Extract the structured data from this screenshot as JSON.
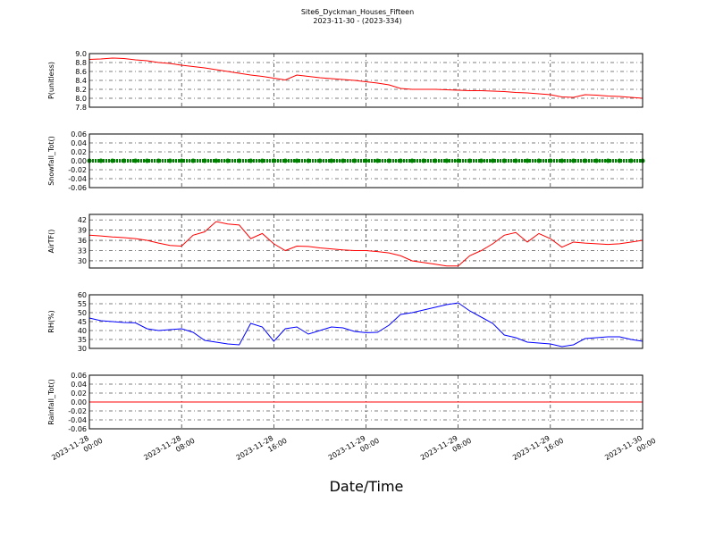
{
  "chart_data": [
    {
      "type": "line",
      "title": "Site6_Dyckman_Houses_Fifteen",
      "subtitle": "2023-11-30 - (2023-334)",
      "ylabel": "P(unitless)",
      "color": "#ff0000",
      "xlim": [
        "2023-11-28 00:00",
        "2023-11-30 00:00"
      ],
      "ylim": [
        7.8,
        9.0
      ],
      "yticks": [
        7.8,
        {
          "value": 8.0,
          "label": "8.0"
        },
        8.2,
        8.4,
        8.6,
        8.8,
        {
          "value": 9.0,
          "label": "9.0"
        }
      ],
      "grid": true,
      "x": [
        "2023-11-28 00:00",
        "2023-11-28 01:00",
        "2023-11-28 02:00",
        "2023-11-28 03:00",
        "2023-11-28 04:00",
        "2023-11-28 05:00",
        "2023-11-28 06:00",
        "2023-11-28 07:00",
        "2023-11-28 08:00",
        "2023-11-28 09:00",
        "2023-11-28 10:00",
        "2023-11-28 11:00",
        "2023-11-28 12:00",
        "2023-11-28 13:00",
        "2023-11-28 14:00",
        "2023-11-28 15:00",
        "2023-11-28 16:00",
        "2023-11-28 17:00",
        "2023-11-28 18:00",
        "2023-11-28 19:00",
        "2023-11-28 20:00",
        "2023-11-28 21:00",
        "2023-11-28 22:00",
        "2023-11-28 23:00",
        "2023-11-29 00:00",
        "2023-11-29 01:00",
        "2023-11-29 02:00",
        "2023-11-29 03:00",
        "2023-11-29 04:00",
        "2023-11-29 05:00",
        "2023-11-29 06:00",
        "2023-11-29 07:00",
        "2023-11-29 08:00",
        "2023-11-29 09:00",
        "2023-11-29 10:00",
        "2023-11-29 11:00",
        "2023-11-29 12:00",
        "2023-11-29 13:00",
        "2023-11-29 14:00",
        "2023-11-29 15:00",
        "2023-11-29 16:00",
        "2023-11-29 17:00",
        "2023-11-29 18:00",
        "2023-11-29 19:00",
        "2023-11-29 20:00",
        "2023-11-29 21:00",
        "2023-11-29 22:00",
        "2023-11-29 23:00",
        "2023-11-30 00:00"
      ],
      "values": [
        8.87,
        8.88,
        8.9,
        8.89,
        8.86,
        8.84,
        8.8,
        8.78,
        8.74,
        8.71,
        8.68,
        8.64,
        8.6,
        8.56,
        8.52,
        8.49,
        8.45,
        8.41,
        8.52,
        8.49,
        8.46,
        8.44,
        8.42,
        8.4,
        8.37,
        8.34,
        8.3,
        8.22,
        8.2,
        8.2,
        8.2,
        8.19,
        8.18,
        8.17,
        8.17,
        8.16,
        8.15,
        8.13,
        8.12,
        8.1,
        8.08,
        8.03,
        8.02,
        8.08,
        8.07,
        8.05,
        8.04,
        8.02,
        8.0
      ]
    },
    {
      "type": "scatter",
      "ylabel": "Snowfall_Tot()",
      "color": "#008000",
      "xlim": [
        "2023-11-28 00:00",
        "2023-11-30 00:00"
      ],
      "ylim": [
        -0.06,
        0.06
      ],
      "yticks": [
        -0.06,
        -0.04,
        -0.02,
        {
          "value": 0,
          "label": "0.00"
        },
        0.02,
        0.04,
        0.06
      ],
      "grid": true,
      "x": [
        "2023-11-28 00:00",
        "2023-11-28 01:00",
        "2023-11-28 02:00",
        "2023-11-28 03:00",
        "2023-11-28 04:00",
        "2023-11-28 05:00",
        "2023-11-28 06:00",
        "2023-11-28 07:00",
        "2023-11-28 08:00",
        "2023-11-28 09:00",
        "2023-11-28 10:00",
        "2023-11-28 11:00",
        "2023-11-28 12:00",
        "2023-11-28 13:00",
        "2023-11-28 14:00",
        "2023-11-28 15:00",
        "2023-11-28 16:00",
        "2023-11-28 17:00",
        "2023-11-28 18:00",
        "2023-11-28 19:00",
        "2023-11-28 20:00",
        "2023-11-28 21:00",
        "2023-11-28 22:00",
        "2023-11-28 23:00",
        "2023-11-29 00:00",
        "2023-11-29 01:00",
        "2023-11-29 02:00",
        "2023-11-29 03:00",
        "2023-11-29 04:00",
        "2023-11-29 05:00",
        "2023-11-29 06:00",
        "2023-11-29 07:00",
        "2023-11-29 08:00",
        "2023-11-29 09:00",
        "2023-11-29 10:00",
        "2023-11-29 11:00",
        "2023-11-29 12:00",
        "2023-11-29 13:00",
        "2023-11-29 14:00",
        "2023-11-29 15:00",
        "2023-11-29 16:00",
        "2023-11-29 17:00",
        "2023-11-29 18:00",
        "2023-11-29 19:00",
        "2023-11-29 20:00",
        "2023-11-29 21:00",
        "2023-11-29 22:00",
        "2023-11-29 23:00",
        "2023-11-30 00:00"
      ],
      "values": [
        0,
        0,
        0,
        0,
        0,
        0,
        0,
        0,
        0,
        0,
        0,
        0,
        0,
        0,
        0,
        0,
        0,
        0,
        0,
        0,
        0,
        0,
        0,
        0,
        0,
        0,
        0,
        0,
        0,
        0,
        0,
        0,
        0,
        0,
        0,
        0,
        0,
        0,
        0,
        0,
        0,
        0,
        0,
        0,
        0,
        0,
        0,
        0,
        0
      ]
    },
    {
      "type": "line",
      "ylabel": "AirTF()",
      "color": "#ff0000",
      "xlim": [
        "2023-11-28 00:00",
        "2023-11-30 00:00"
      ],
      "ylim": [
        27.9,
        43.6
      ],
      "yticks": [
        30,
        33,
        36,
        39,
        42
      ],
      "grid": true,
      "x": [
        "2023-11-28 00:00",
        "2023-11-28 01:00",
        "2023-11-28 02:00",
        "2023-11-28 03:00",
        "2023-11-28 04:00",
        "2023-11-28 05:00",
        "2023-11-28 06:00",
        "2023-11-28 07:00",
        "2023-11-28 08:00",
        "2023-11-28 09:00",
        "2023-11-28 10:00",
        "2023-11-28 11:00",
        "2023-11-28 12:00",
        "2023-11-28 13:00",
        "2023-11-28 14:00",
        "2023-11-28 15:00",
        "2023-11-28 16:00",
        "2023-11-28 17:00",
        "2023-11-28 18:00",
        "2023-11-28 19:00",
        "2023-11-28 20:00",
        "2023-11-28 21:00",
        "2023-11-28 22:00",
        "2023-11-28 23:00",
        "2023-11-29 00:00",
        "2023-11-29 01:00",
        "2023-11-29 02:00",
        "2023-11-29 03:00",
        "2023-11-29 04:00",
        "2023-11-29 05:00",
        "2023-11-29 06:00",
        "2023-11-29 07:00",
        "2023-11-29 08:00",
        "2023-11-29 09:00",
        "2023-11-29 10:00",
        "2023-11-29 11:00",
        "2023-11-29 12:00",
        "2023-11-29 13:00",
        "2023-11-29 14:00",
        "2023-11-29 15:00",
        "2023-11-29 16:00",
        "2023-11-29 17:00",
        "2023-11-29 18:00",
        "2023-11-29 19:00",
        "2023-11-29 20:00",
        "2023-11-29 21:00",
        "2023-11-29 22:00",
        "2023-11-29 23:00",
        "2023-11-30 00:00"
      ],
      "values": [
        37.5,
        37.3,
        37.0,
        36.8,
        36.5,
        36.0,
        35.2,
        34.5,
        34.3,
        37.5,
        38.5,
        41.5,
        40.8,
        40.5,
        36.5,
        38,
        35,
        33,
        34.3,
        34.2,
        33.8,
        33.5,
        33.2,
        33,
        33,
        32.7,
        32.3,
        31.5,
        30,
        29.5,
        29,
        28.5,
        28.5,
        31.5,
        33,
        35,
        37.5,
        38.3,
        35.5,
        38,
        36.5,
        34,
        35.5,
        35.2,
        35,
        34.8,
        35,
        35.5,
        36
      ]
    },
    {
      "type": "line",
      "ylabel": "RH(%)",
      "color": "#0000ff",
      "xlim": [
        "2023-11-28 00:00",
        "2023-11-30 00:00"
      ],
      "ylim": [
        30,
        60
      ],
      "yticks": [
        30,
        35,
        40,
        45,
        50,
        55,
        60
      ],
      "grid": true,
      "x": [
        "2023-11-28 00:00",
        "2023-11-28 01:00",
        "2023-11-28 02:00",
        "2023-11-28 03:00",
        "2023-11-28 04:00",
        "2023-11-28 05:00",
        "2023-11-28 06:00",
        "2023-11-28 07:00",
        "2023-11-28 08:00",
        "2023-11-28 09:00",
        "2023-11-28 10:00",
        "2023-11-28 11:00",
        "2023-11-28 12:00",
        "2023-11-28 13:00",
        "2023-11-28 14:00",
        "2023-11-28 15:00",
        "2023-11-28 16:00",
        "2023-11-28 17:00",
        "2023-11-28 18:00",
        "2023-11-28 19:00",
        "2023-11-28 20:00",
        "2023-11-28 21:00",
        "2023-11-28 22:00",
        "2023-11-28 23:00",
        "2023-11-29 00:00",
        "2023-11-29 01:00",
        "2023-11-29 02:00",
        "2023-11-29 03:00",
        "2023-11-29 04:00",
        "2023-11-29 05:00",
        "2023-11-29 06:00",
        "2023-11-29 07:00",
        "2023-11-29 08:00",
        "2023-11-29 09:00",
        "2023-11-29 10:00",
        "2023-11-29 11:00",
        "2023-11-29 12:00",
        "2023-11-29 13:00",
        "2023-11-29 14:00",
        "2023-11-29 15:00",
        "2023-11-29 16:00",
        "2023-11-29 17:00",
        "2023-11-29 18:00",
        "2023-11-29 19:00",
        "2023-11-29 20:00",
        "2023-11-29 21:00",
        "2023-11-29 22:00",
        "2023-11-29 23:00",
        "2023-11-30 00:00"
      ],
      "values": [
        47,
        45.5,
        45,
        44.5,
        44.3,
        41,
        40,
        40.5,
        41,
        39,
        34.5,
        33.5,
        32.5,
        32,
        44,
        42,
        34,
        41,
        42,
        38,
        40,
        42,
        41.5,
        39.5,
        38.8,
        39,
        43,
        49,
        50,
        51.5,
        53,
        54.5,
        55.5,
        51,
        47.5,
        44,
        37.5,
        36,
        33.5,
        33,
        32.5,
        31,
        32,
        35.5,
        36,
        36.5,
        36.5,
        35,
        34
      ]
    },
    {
      "type": "line",
      "ylabel": "Rainfall_Tot()",
      "color": "#ff0000",
      "xlabel": "Date/Time",
      "xlim": [
        "2023-11-28 00:00",
        "2023-11-30 00:00"
      ],
      "xticks": [
        {
          "value": "2023-11-28 00:00",
          "label": "2023-11-28\n00:00"
        },
        {
          "value": "2023-11-28 08:00",
          "label": "2023-11-28\n08:00"
        },
        {
          "value": "2023-11-28 16:00",
          "label": "2023-11-28\n16:00"
        },
        {
          "value": "2023-11-29 00:00",
          "label": "2023-11-29\n00:00"
        },
        {
          "value": "2023-11-29 08:00",
          "label": "2023-11-29\n08:00"
        },
        {
          "value": "2023-11-29 16:00",
          "label": "2023-11-29\n16:00"
        },
        {
          "value": "2023-11-30 00:00",
          "label": "2023-11-30\n00:00"
        }
      ],
      "ylim": [
        -0.06,
        0.06
      ],
      "yticks": [
        -0.06,
        -0.04,
        -0.02,
        {
          "value": 0,
          "label": "0.00"
        },
        0.02,
        0.04,
        0.06
      ],
      "grid": true,
      "x": [
        "2023-11-28 00:00",
        "2023-11-28 01:00",
        "2023-11-28 02:00",
        "2023-11-28 03:00",
        "2023-11-28 04:00",
        "2023-11-28 05:00",
        "2023-11-28 06:00",
        "2023-11-28 07:00",
        "2023-11-28 08:00",
        "2023-11-28 09:00",
        "2023-11-28 10:00",
        "2023-11-28 11:00",
        "2023-11-28 12:00",
        "2023-11-28 13:00",
        "2023-11-28 14:00",
        "2023-11-28 15:00",
        "2023-11-28 16:00",
        "2023-11-28 17:00",
        "2023-11-28 18:00",
        "2023-11-28 19:00",
        "2023-11-28 20:00",
        "2023-11-28 21:00",
        "2023-11-28 22:00",
        "2023-11-28 23:00",
        "2023-11-29 00:00",
        "2023-11-29 01:00",
        "2023-11-29 02:00",
        "2023-11-29 03:00",
        "2023-11-29 04:00",
        "2023-11-29 05:00",
        "2023-11-29 06:00",
        "2023-11-29 07:00",
        "2023-11-29 08:00",
        "2023-11-29 09:00",
        "2023-11-29 10:00",
        "2023-11-29 11:00",
        "2023-11-29 12:00",
        "2023-11-29 13:00",
        "2023-11-29 14:00",
        "2023-11-29 15:00",
        "2023-11-29 16:00",
        "2023-11-29 17:00",
        "2023-11-29 18:00",
        "2023-11-29 19:00",
        "2023-11-29 20:00",
        "2023-11-29 21:00",
        "2023-11-29 22:00",
        "2023-11-29 23:00",
        "2023-11-30 00:00"
      ],
      "values": [
        0,
        0,
        0,
        0,
        0,
        0,
        0,
        0,
        0,
        0,
        0,
        0,
        0,
        0,
        0,
        0,
        0,
        0,
        0,
        0,
        0,
        0,
        0,
        0,
        0,
        0,
        0,
        0,
        0,
        0,
        0,
        0,
        0,
        0,
        0,
        0,
        0,
        0,
        0,
        0,
        0,
        0,
        0,
        0,
        0,
        0,
        0,
        0,
        0
      ]
    }
  ]
}
